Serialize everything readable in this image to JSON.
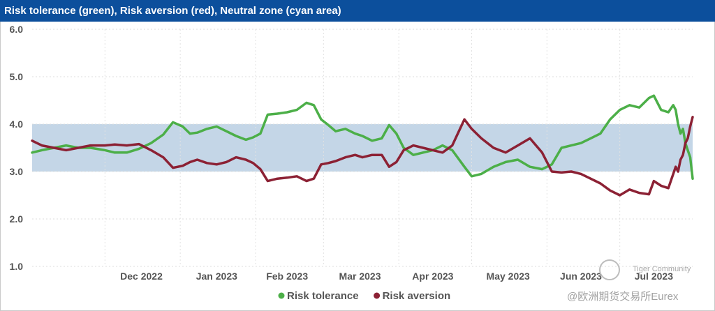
{
  "chart_data": {
    "type": "line",
    "title": "Risk tolerance (green), Risk aversion (red), Neutral zone (cyan area)",
    "ylim": [
      1.0,
      6.0
    ],
    "yticks": [
      "1.0",
      "2.0",
      "3.0",
      "4.0",
      "5.0",
      "6.0"
    ],
    "xlabel": "",
    "ylabel": "",
    "grid": true,
    "legend_position": "bottom-center",
    "neutral_zone": {
      "low": 3.0,
      "high": 4.0,
      "color": "#c4d6e7"
    },
    "x_months": [
      "Dec 2022",
      "Jan 2023",
      "Feb 2023",
      "Mar 2023",
      "Apr 2023",
      "May 2023",
      "Jun 2023",
      "Jul 2023"
    ],
    "x_start": "2022-11-01",
    "x_end": "2023-07-31",
    "series": [
      {
        "name": "Risk tolerance",
        "color": "#4caf48",
        "points": [
          [
            "2022-11-01",
            3.4
          ],
          [
            "2022-11-05",
            3.45
          ],
          [
            "2022-11-10",
            3.5
          ],
          [
            "2022-11-15",
            3.55
          ],
          [
            "2022-11-20",
            3.5
          ],
          [
            "2022-11-25",
            3.5
          ],
          [
            "2022-12-01",
            3.45
          ],
          [
            "2022-12-05",
            3.4
          ],
          [
            "2022-12-10",
            3.4
          ],
          [
            "2022-12-15",
            3.48
          ],
          [
            "2022-12-20",
            3.6
          ],
          [
            "2022-12-25",
            3.78
          ],
          [
            "2022-12-29",
            4.04
          ],
          [
            "2023-01-02",
            3.95
          ],
          [
            "2023-01-05",
            3.8
          ],
          [
            "2023-01-08",
            3.82
          ],
          [
            "2023-01-12",
            3.9
          ],
          [
            "2023-01-16",
            3.95
          ],
          [
            "2023-01-20",
            3.85
          ],
          [
            "2023-01-24",
            3.75
          ],
          [
            "2023-01-28",
            3.67
          ],
          [
            "2023-01-31",
            3.72
          ],
          [
            "2023-02-03",
            3.8
          ],
          [
            "2023-02-06",
            4.2
          ],
          [
            "2023-02-10",
            4.22
          ],
          [
            "2023-02-14",
            4.25
          ],
          [
            "2023-02-18",
            4.3
          ],
          [
            "2023-02-22",
            4.45
          ],
          [
            "2023-02-25",
            4.4
          ],
          [
            "2023-02-28",
            4.1
          ],
          [
            "2023-03-03",
            3.98
          ],
          [
            "2023-03-06",
            3.85
          ],
          [
            "2023-03-10",
            3.9
          ],
          [
            "2023-03-14",
            3.8
          ],
          [
            "2023-03-17",
            3.75
          ],
          [
            "2023-03-21",
            3.65
          ],
          [
            "2023-03-25",
            3.7
          ],
          [
            "2023-03-28",
            3.98
          ],
          [
            "2023-03-31",
            3.8
          ],
          [
            "2023-04-03",
            3.5
          ],
          [
            "2023-04-07",
            3.35
          ],
          [
            "2023-04-11",
            3.4
          ],
          [
            "2023-04-15",
            3.45
          ],
          [
            "2023-04-19",
            3.55
          ],
          [
            "2023-04-23",
            3.45
          ],
          [
            "2023-04-28",
            3.1
          ],
          [
            "2023-05-01",
            2.9
          ],
          [
            "2023-05-05",
            2.95
          ],
          [
            "2023-05-10",
            3.1
          ],
          [
            "2023-05-15",
            3.2
          ],
          [
            "2023-05-20",
            3.25
          ],
          [
            "2023-05-25",
            3.1
          ],
          [
            "2023-05-30",
            3.05
          ],
          [
            "2023-06-03",
            3.15
          ],
          [
            "2023-06-07",
            3.5
          ],
          [
            "2023-06-11",
            3.55
          ],
          [
            "2023-06-15",
            3.6
          ],
          [
            "2023-06-19",
            3.7
          ],
          [
            "2023-06-23",
            3.8
          ],
          [
            "2023-06-27",
            4.1
          ],
          [
            "2023-07-01",
            4.3
          ],
          [
            "2023-07-05",
            4.4
          ],
          [
            "2023-07-09",
            4.35
          ],
          [
            "2023-07-13",
            4.55
          ],
          [
            "2023-07-15",
            4.6
          ],
          [
            "2023-07-18",
            4.3
          ],
          [
            "2023-07-21",
            4.25
          ],
          [
            "2023-07-23",
            4.4
          ],
          [
            "2023-07-24",
            4.3
          ],
          [
            "2023-07-25",
            4.0
          ],
          [
            "2023-07-26",
            3.8
          ],
          [
            "2023-07-27",
            3.9
          ],
          [
            "2023-07-28",
            3.6
          ],
          [
            "2023-07-29",
            3.45
          ],
          [
            "2023-07-30",
            3.3
          ],
          [
            "2023-07-31",
            2.85
          ]
        ]
      },
      {
        "name": "Risk aversion",
        "color": "#8c2134",
        "points": [
          [
            "2022-11-01",
            3.65
          ],
          [
            "2022-11-05",
            3.55
          ],
          [
            "2022-11-10",
            3.5
          ],
          [
            "2022-11-15",
            3.45
          ],
          [
            "2022-11-20",
            3.5
          ],
          [
            "2022-11-25",
            3.55
          ],
          [
            "2022-12-01",
            3.55
          ],
          [
            "2022-12-05",
            3.57
          ],
          [
            "2022-12-10",
            3.55
          ],
          [
            "2022-12-15",
            3.58
          ],
          [
            "2022-12-20",
            3.45
          ],
          [
            "2022-12-25",
            3.3
          ],
          [
            "2022-12-29",
            3.08
          ],
          [
            "2023-01-02",
            3.12
          ],
          [
            "2023-01-05",
            3.2
          ],
          [
            "2023-01-08",
            3.25
          ],
          [
            "2023-01-12",
            3.18
          ],
          [
            "2023-01-16",
            3.15
          ],
          [
            "2023-01-20",
            3.2
          ],
          [
            "2023-01-24",
            3.3
          ],
          [
            "2023-01-28",
            3.25
          ],
          [
            "2023-01-31",
            3.18
          ],
          [
            "2023-02-03",
            3.05
          ],
          [
            "2023-02-06",
            2.8
          ],
          [
            "2023-02-10",
            2.85
          ],
          [
            "2023-02-14",
            2.87
          ],
          [
            "2023-02-18",
            2.9
          ],
          [
            "2023-02-22",
            2.8
          ],
          [
            "2023-02-25",
            2.85
          ],
          [
            "2023-02-28",
            3.15
          ],
          [
            "2023-03-03",
            3.18
          ],
          [
            "2023-03-06",
            3.22
          ],
          [
            "2023-03-10",
            3.3
          ],
          [
            "2023-03-14",
            3.35
          ],
          [
            "2023-03-17",
            3.3
          ],
          [
            "2023-03-21",
            3.35
          ],
          [
            "2023-03-25",
            3.35
          ],
          [
            "2023-03-28",
            3.1
          ],
          [
            "2023-03-31",
            3.2
          ],
          [
            "2023-04-03",
            3.45
          ],
          [
            "2023-04-07",
            3.55
          ],
          [
            "2023-04-11",
            3.5
          ],
          [
            "2023-04-15",
            3.45
          ],
          [
            "2023-04-19",
            3.4
          ],
          [
            "2023-04-23",
            3.55
          ],
          [
            "2023-04-28",
            4.1
          ],
          [
            "2023-05-01",
            3.9
          ],
          [
            "2023-05-05",
            3.7
          ],
          [
            "2023-05-10",
            3.5
          ],
          [
            "2023-05-15",
            3.4
          ],
          [
            "2023-05-20",
            3.55
          ],
          [
            "2023-05-25",
            3.7
          ],
          [
            "2023-05-30",
            3.4
          ],
          [
            "2023-06-03",
            3.0
          ],
          [
            "2023-06-07",
            2.98
          ],
          [
            "2023-06-11",
            3.0
          ],
          [
            "2023-06-15",
            2.95
          ],
          [
            "2023-06-19",
            2.85
          ],
          [
            "2023-06-23",
            2.75
          ],
          [
            "2023-06-27",
            2.6
          ],
          [
            "2023-07-01",
            2.5
          ],
          [
            "2023-07-05",
            2.62
          ],
          [
            "2023-07-09",
            2.55
          ],
          [
            "2023-07-13",
            2.52
          ],
          [
            "2023-07-15",
            2.8
          ],
          [
            "2023-07-18",
            2.7
          ],
          [
            "2023-07-21",
            2.65
          ],
          [
            "2023-07-23",
            2.95
          ],
          [
            "2023-07-24",
            3.1
          ],
          [
            "2023-07-25",
            3.0
          ],
          [
            "2023-07-26",
            3.25
          ],
          [
            "2023-07-27",
            3.35
          ],
          [
            "2023-07-28",
            3.6
          ],
          [
            "2023-07-29",
            3.7
          ],
          [
            "2023-07-30",
            3.95
          ],
          [
            "2023-07-31",
            4.15
          ]
        ]
      }
    ]
  },
  "watermark": {
    "line1": "Tiger Community",
    "line2": "@欧洲期货交易所Eurex"
  }
}
